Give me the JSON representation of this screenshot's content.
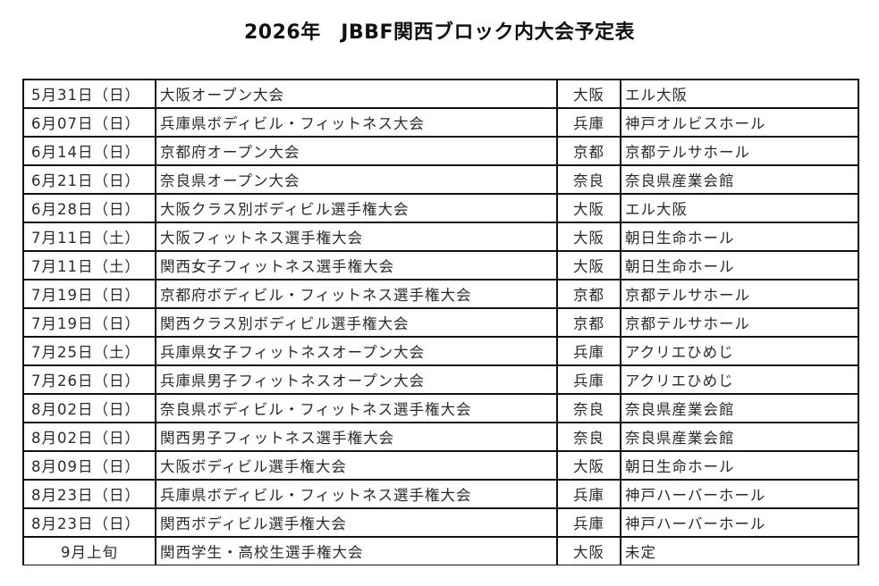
{
  "title": "2026年　JBBF関西ブロック内大会予定表",
  "rows": [
    {
      "date": "5月31日（日）",
      "event": "大阪オープン大会",
      "pref": "大阪",
      "venue": "エル大阪"
    },
    {
      "date": "6月07日（日）",
      "event": "兵庫県ボディビル・フィットネス大会",
      "pref": "兵庫",
      "venue": "神戸オルビスホール"
    },
    {
      "date": "6月14日（日）",
      "event": "京都府オープン大会",
      "pref": "京都",
      "venue": "京都テルサホール"
    },
    {
      "date": "6月21日（日）",
      "event": "奈良県オープン大会",
      "pref": "奈良",
      "venue": "奈良県産業会館"
    },
    {
      "date": "6月28日（日）",
      "event": "大阪クラス別ボディビル選手権大会",
      "pref": "大阪",
      "venue": "エル大阪"
    },
    {
      "date": "7月11日（土）",
      "event": "大阪フィットネス選手権大会",
      "pref": "大阪",
      "venue": "朝日生命ホール"
    },
    {
      "date": "7月11日（土）",
      "event": "関西女子フィットネス選手権大会",
      "pref": "大阪",
      "venue": "朝日生命ホール"
    },
    {
      "date": "7月19日（日）",
      "event": "京都府ボディビル・フィットネス選手権大会",
      "pref": "京都",
      "venue": "京都テルサホール"
    },
    {
      "date": "7月19日（日）",
      "event": "関西クラス別ボディビル選手権大会",
      "pref": "京都",
      "venue": "京都テルサホール"
    },
    {
      "date": "7月25日（土）",
      "event": "兵庫県女子フィットネスオープン大会",
      "pref": "兵庫",
      "venue": "アクリエひめじ"
    },
    {
      "date": "7月26日（日）",
      "event": "兵庫県男子フィットネスオープン大会",
      "pref": "兵庫",
      "venue": "アクリエひめじ"
    },
    {
      "date": "8月02日（日）",
      "event": "奈良県ボディビル・フィットネス選手権大会",
      "pref": "奈良",
      "venue": "奈良県産業会館"
    },
    {
      "date": "8月02日（日）",
      "event": "関西男子フィットネス選手権大会",
      "pref": "奈良",
      "venue": "奈良県産業会館"
    },
    {
      "date": "8月09日（日）",
      "event": "大阪ボディビル選手権大会",
      "pref": "大阪",
      "venue": "朝日生命ホール"
    },
    {
      "date": "8月23日（日）",
      "event": "兵庫県ボディビル・フィットネス選手権大会",
      "pref": "兵庫",
      "venue": "神戸ハーバーホール"
    },
    {
      "date": "8月23日（日）",
      "event": "関西ボディビル選手権大会",
      "pref": "兵庫",
      "venue": "神戸ハーバーホール"
    },
    {
      "date": "9月上旬",
      "event": "関西学生・高校生選手権大会",
      "pref": "大阪",
      "venue": "未定",
      "date_centered": true
    }
  ]
}
